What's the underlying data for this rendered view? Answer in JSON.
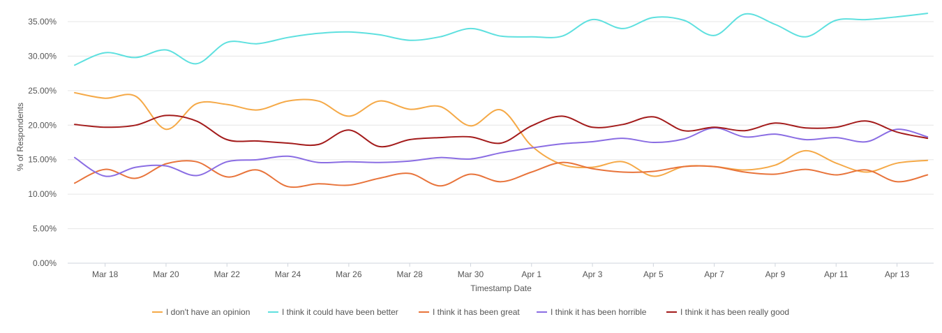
{
  "chart_data": {
    "type": "line",
    "title": "",
    "xlabel": "Timestamp Date",
    "ylabel": "% of Respondents",
    "ylim": [
      0,
      37
    ],
    "y_ticks": [
      0,
      5,
      10,
      15,
      20,
      25,
      30,
      35
    ],
    "y_tick_labels": [
      "0.00%",
      "5.00%",
      "10.00%",
      "15.00%",
      "20.00%",
      "25.00%",
      "30.00%",
      "35.00%"
    ],
    "grid": true,
    "legend_position": "bottom-center",
    "x": [
      "Mar 17",
      "Mar 18",
      "Mar 19",
      "Mar 20",
      "Mar 21",
      "Mar 22",
      "Mar 23",
      "Mar 24",
      "Mar 25",
      "Mar 26",
      "Mar 27",
      "Mar 28",
      "Mar 29",
      "Mar 30",
      "Mar 31",
      "Apr 1",
      "Apr 2",
      "Apr 3",
      "Apr 4",
      "Apr 5",
      "Apr 6",
      "Apr 7",
      "Apr 8",
      "Apr 9",
      "Apr 10",
      "Apr 11",
      "Apr 12",
      "Apr 13",
      "Apr 14"
    ],
    "x_tick_labels": [
      "Mar 18",
      "Mar 20",
      "Mar 22",
      "Mar 24",
      "Mar 26",
      "Mar 28",
      "Mar 30",
      "Apr 1",
      "Apr 3",
      "Apr 5",
      "Apr 7",
      "Apr 9",
      "Apr 11",
      "Apr 13"
    ],
    "series": [
      {
        "name": "I don't have an opinion",
        "color": "#f5a947",
        "values": [
          24.7,
          23.9,
          24.2,
          19.4,
          23.1,
          23.0,
          22.2,
          23.5,
          23.5,
          21.3,
          23.5,
          22.3,
          22.7,
          19.9,
          22.2,
          17.0,
          14.3,
          13.9,
          14.7,
          12.6,
          14.0,
          14.0,
          13.5,
          14.2,
          16.3,
          14.5,
          13.2,
          14.5,
          14.9
        ]
      },
      {
        "name": "I think it could have been better",
        "color": "#5ee0df",
        "values": [
          28.7,
          30.5,
          29.8,
          30.9,
          28.9,
          32.0,
          31.8,
          32.7,
          33.3,
          33.5,
          33.1,
          32.3,
          32.8,
          34.0,
          32.9,
          32.8,
          32.9,
          35.3,
          34.0,
          35.6,
          35.2,
          33.0,
          36.1,
          34.6,
          32.8,
          35.2,
          35.3,
          35.7,
          36.2
        ]
      },
      {
        "name": "I think it has been great",
        "color": "#e8743b",
        "values": [
          11.6,
          13.6,
          12.3,
          14.4,
          14.7,
          12.5,
          13.5,
          11.1,
          11.5,
          11.3,
          12.3,
          13.0,
          11.2,
          12.9,
          11.8,
          13.2,
          14.6,
          13.7,
          13.2,
          13.3,
          14.0,
          14.0,
          13.2,
          12.9,
          13.6,
          12.8,
          13.5,
          11.8,
          12.8
        ]
      },
      {
        "name": "I think it has been horrible",
        "color": "#8a6de3",
        "values": [
          15.3,
          12.6,
          13.9,
          14.1,
          12.7,
          14.7,
          15.0,
          15.5,
          14.6,
          14.7,
          14.6,
          14.8,
          15.3,
          15.1,
          16.0,
          16.7,
          17.3,
          17.6,
          18.1,
          17.5,
          18.0,
          19.6,
          18.3,
          18.7,
          17.9,
          18.2,
          17.6,
          19.4,
          18.3
        ]
      },
      {
        "name": "I think it has been really good",
        "color": "#a31b1b",
        "values": [
          20.1,
          19.7,
          20.0,
          21.4,
          20.6,
          17.9,
          17.7,
          17.4,
          17.2,
          19.3,
          16.9,
          17.9,
          18.2,
          18.3,
          17.4,
          19.9,
          21.3,
          19.7,
          20.1,
          21.2,
          19.2,
          19.7,
          19.2,
          20.3,
          19.6,
          19.7,
          20.6,
          19.0,
          18.1
        ]
      }
    ]
  }
}
